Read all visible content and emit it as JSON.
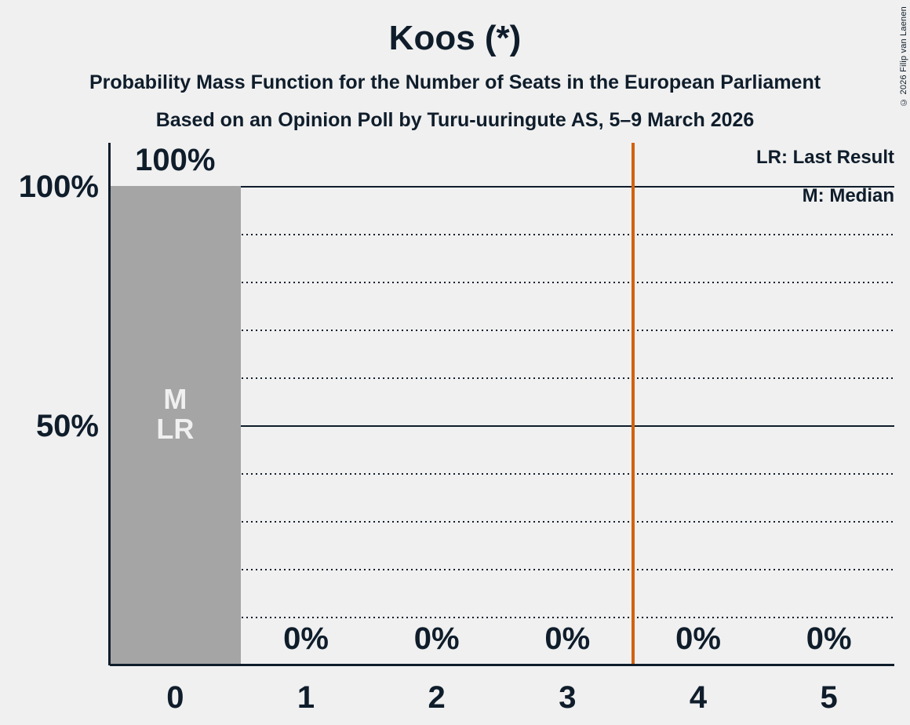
{
  "copyright": "© 2026 Filip van Laenen",
  "chart_data": {
    "type": "bar",
    "title": "Koos (*)",
    "subtitle_line1": "Probability Mass Function for the Number of Seats in the European Parliament",
    "subtitle_line2": "Based on an Opinion Poll by Turu-uuringute AS, 5–9 March 2026",
    "xlabel": "",
    "ylabel": "",
    "categories": [
      "0",
      "1",
      "2",
      "3",
      "4",
      "5"
    ],
    "values": [
      100,
      0,
      0,
      0,
      0,
      0
    ],
    "value_labels": [
      "100%",
      "0%",
      "0%",
      "0%",
      "0%",
      "0%"
    ],
    "ylim": [
      0,
      100
    ],
    "y_ticks": [
      {
        "value": 100,
        "label": "100%"
      },
      {
        "value": 50,
        "label": "50%"
      }
    ],
    "gridlines": {
      "dotted_values": [
        10,
        20,
        30,
        40,
        60,
        70,
        80,
        90
      ],
      "solid_values": [
        50,
        100
      ]
    },
    "legend": {
      "last_result": "LR: Last Result",
      "median": "M: Median"
    },
    "legend_position": "top-right",
    "median_bar": "0",
    "last_result_bar": "0",
    "bar_annotations": [
      {
        "bar": "0",
        "lines": [
          "M",
          "LR"
        ]
      }
    ],
    "majority_line_x": 3.5,
    "colors": {
      "background": "#f0f0f0",
      "text": "#0f1d2b",
      "bar": "#a5a5a5",
      "bar_label": "#f0f0f0",
      "majority_line": "#d2620e"
    }
  }
}
